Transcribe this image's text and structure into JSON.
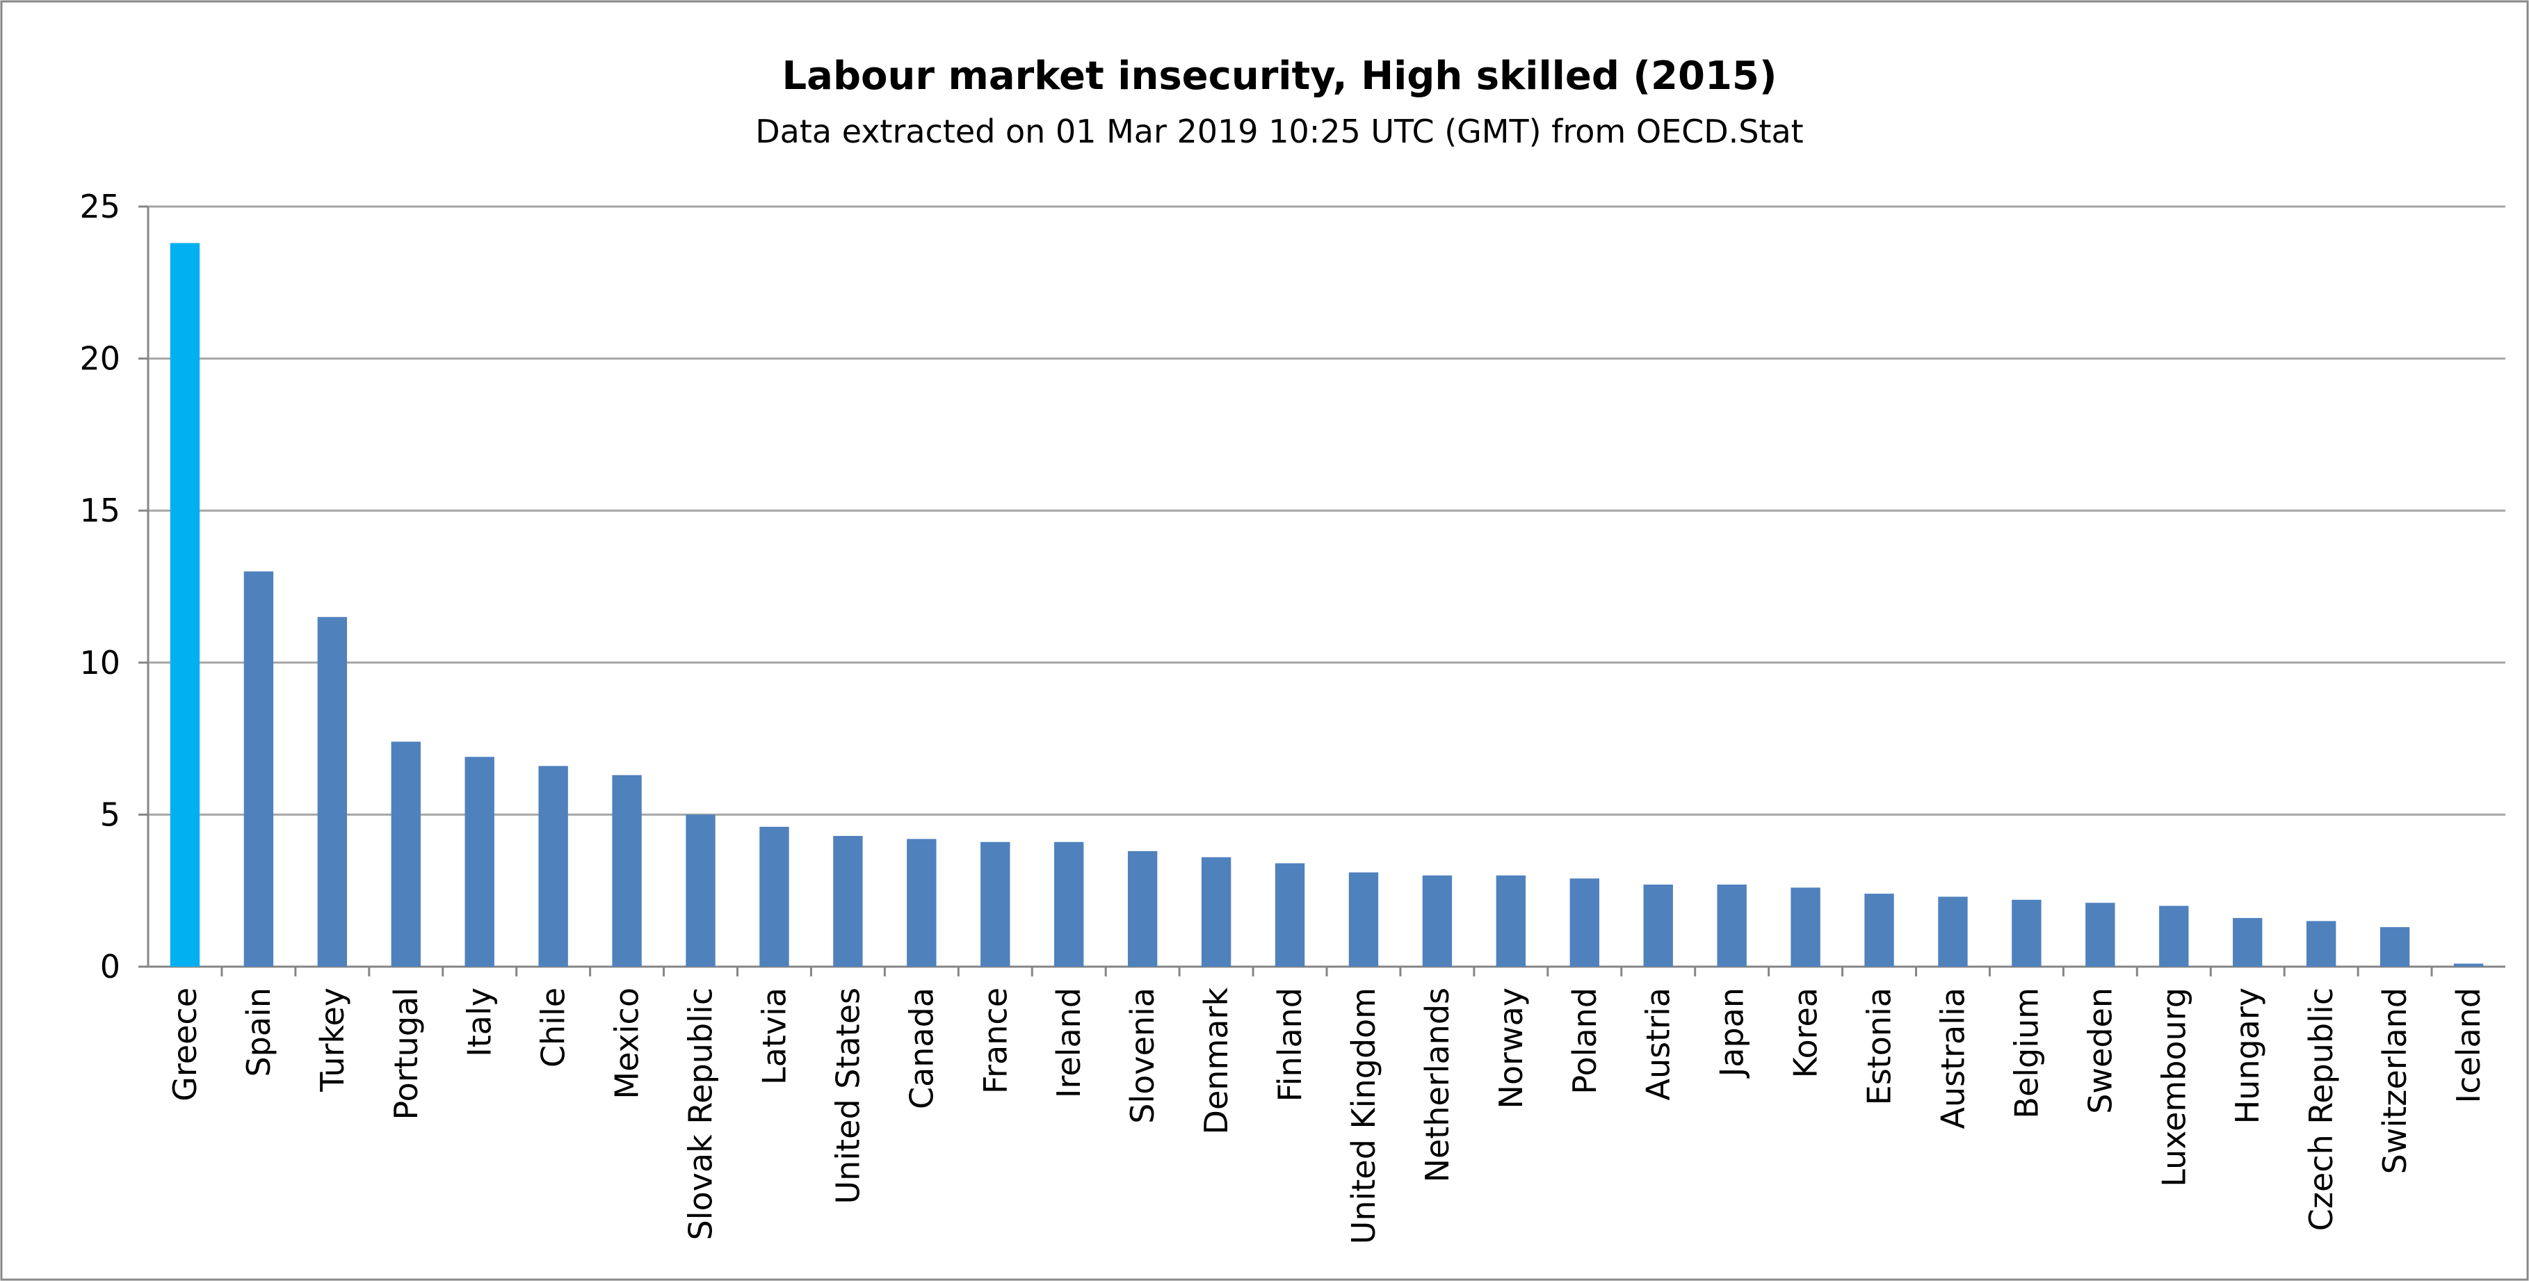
{
  "chart_data": {
    "type": "bar",
    "title": "Labour market insecurity, High skilled (2015)",
    "subtitle": "Data extracted on 01 Mar 2019 10:25 UTC (GMT) from OECD.Stat",
    "categories": [
      "Greece",
      "Spain",
      "Turkey",
      "Portugal",
      "Italy",
      "Chile",
      "Mexico",
      "Slovak Republic",
      "Latvia",
      "United States",
      "Canada",
      "France",
      "Ireland",
      "Slovenia",
      "Denmark",
      "Finland",
      "United Kingdom",
      "Netherlands",
      "Norway",
      "Poland",
      "Austria",
      "Japan",
      "Korea",
      "Estonia",
      "Australia",
      "Belgium",
      "Sweden",
      "Luxembourg",
      "Hungary",
      "Czech Republic",
      "Switzerland",
      "Iceland"
    ],
    "values": [
      23.8,
      13.0,
      11.5,
      7.4,
      6.9,
      6.6,
      6.3,
      5.0,
      4.6,
      4.3,
      4.2,
      4.1,
      4.1,
      3.8,
      3.6,
      3.4,
      3.1,
      3.0,
      3.0,
      2.9,
      2.7,
      2.7,
      2.6,
      2.4,
      2.3,
      2.2,
      2.1,
      2.0,
      1.6,
      1.5,
      1.3,
      0.1
    ],
    "colors": [
      "#00b0f0",
      "#4f81bd",
      "#4f81bd",
      "#4f81bd",
      "#4f81bd",
      "#4f81bd",
      "#4f81bd",
      "#4f81bd",
      "#4f81bd",
      "#4f81bd",
      "#4f81bd",
      "#4f81bd",
      "#4f81bd",
      "#4f81bd",
      "#4f81bd",
      "#4f81bd",
      "#4f81bd",
      "#4f81bd",
      "#4f81bd",
      "#4f81bd",
      "#4f81bd",
      "#4f81bd",
      "#4f81bd",
      "#4f81bd",
      "#4f81bd",
      "#4f81bd",
      "#4f81bd",
      "#4f81bd",
      "#4f81bd",
      "#4f81bd",
      "#4f81bd",
      "#4f81bd"
    ],
    "ylim": [
      0,
      25
    ],
    "yticks": [
      0,
      5,
      10,
      15,
      20,
      25
    ],
    "grid": true
  }
}
